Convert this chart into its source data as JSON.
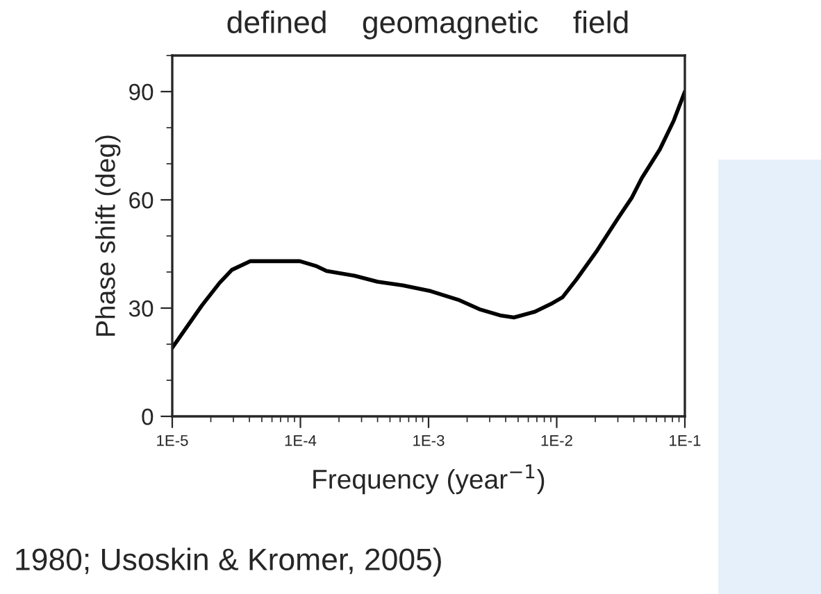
{
  "chart_data": {
    "type": "line",
    "xlabel": "Frequency (year$^{−1}$)",
    "ylabel": "Phase shift (deg)",
    "annotations": [
      "defined    geomagnetic    field",
      "1980; Usoskin & Kromer, 2005)"
    ],
    "log": "x",
    "xlim": [
      1e-05,
      0.1
    ],
    "ylim": [
      0,
      100
    ],
    "xticks": [
      {
        "value": 1e-05,
        "label": "1E-5"
      },
      {
        "value": 0.0001,
        "label": "1E-4"
      },
      {
        "value": 0.001,
        "label": "1E-3"
      },
      {
        "value": 0.01,
        "label": "1E-2"
      },
      {
        "value": 0.1,
        "label": "1E-1"
      }
    ],
    "yticks": [
      0,
      30,
      60,
      90
    ],
    "grid": false,
    "legend": false,
    "marker": "none",
    "line_style": "solid",
    "series": [
      {
        "color": "#000000",
        "x": [
          1e-05,
          1.7e-05,
          2.34e-05,
          2.92e-05,
          4.05e-05,
          9.9e-05,
          0.000134,
          0.00016,
          0.000263,
          0.0004,
          0.00063,
          0.00104,
          0.00171,
          0.00249,
          0.00361,
          0.00464,
          0.00675,
          0.0093,
          0.0111,
          0.0143,
          0.0207,
          0.0302,
          0.0387,
          0.0461,
          0.0638,
          0.082,
          0.1
        ],
        "values": [
          19,
          30.7,
          37,
          40.6,
          43,
          43,
          41.6,
          40.3,
          39,
          37.3,
          36.3,
          34.7,
          32.3,
          29.7,
          28,
          27.4,
          29,
          31.4,
          33,
          38,
          46,
          55,
          60.7,
          66,
          74,
          82,
          90
        ]
      }
    ]
  }
}
